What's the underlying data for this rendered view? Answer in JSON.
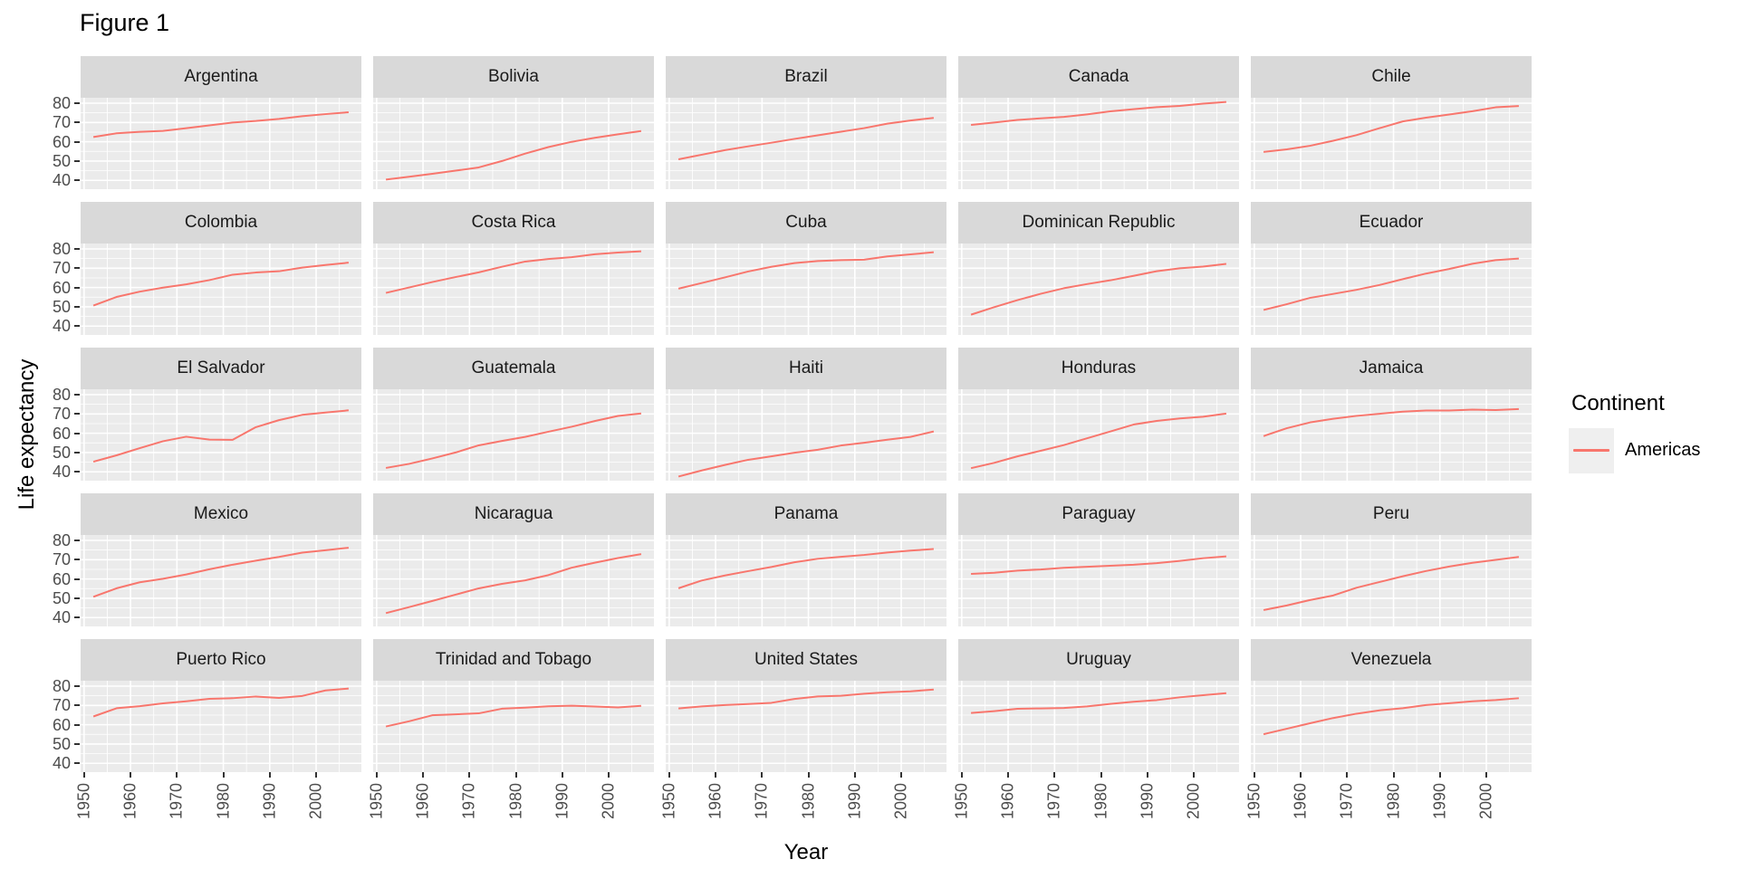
{
  "title": "Figure 1",
  "axes": {
    "x_label": "Year",
    "y_label": "Life expectancy",
    "x_tick_labels": [
      "1950",
      "1960",
      "1970",
      "1980",
      "1990",
      "2000"
    ],
    "y_tick_labels": [
      "40",
      "50",
      "60",
      "70",
      "80"
    ]
  },
  "legend": {
    "title": "Continent",
    "entries": [
      {
        "label": "Americas",
        "color": "#F8766D"
      }
    ]
  },
  "colors": {
    "line": "#F8766D",
    "panel_background": "#EBEBEB",
    "strip_background": "#D9D9D9",
    "gridline": "#FFFFFF",
    "axis_text": "#4D4D4D",
    "strip_text": "#1A1A1A",
    "tick_mark": "#333333",
    "legend_key_background": "#EFEFEF"
  },
  "chart_data": {
    "type": "line",
    "title": "Figure 1",
    "xlabel": "Year",
    "ylabel": "Life expectancy",
    "facet_layout": {
      "rows": 5,
      "cols": 5
    },
    "legend_position": "right",
    "grid": true,
    "x": [
      1952,
      1957,
      1962,
      1967,
      1972,
      1977,
      1982,
      1987,
      1992,
      1997,
      2002,
      2007
    ],
    "xlim": [
      1949.25,
      2009.75
    ],
    "ylim": [
      35.43,
      82.81
    ],
    "x_major_ticks": [
      1950,
      1960,
      1970,
      1980,
      1990,
      2000
    ],
    "x_minor_ticks": [
      1955,
      1965,
      1975,
      1985,
      1995,
      2005
    ],
    "y_major_ticks": [
      40,
      50,
      60,
      70,
      80
    ],
    "y_minor_ticks": [
      45,
      55,
      65,
      75
    ],
    "series": [
      {
        "name": "Argentina",
        "values": [
          62.48,
          64.4,
          65.14,
          65.63,
          67.06,
          68.48,
          69.94,
          70.77,
          71.87,
          73.28,
          74.34,
          75.32
        ]
      },
      {
        "name": "Bolivia",
        "values": [
          40.41,
          41.89,
          43.43,
          45.03,
          46.71,
          50.02,
          53.86,
          57.25,
          59.96,
          62.05,
          63.88,
          65.55
        ]
      },
      {
        "name": "Brazil",
        "values": [
          50.92,
          53.28,
          55.66,
          57.63,
          59.5,
          61.49,
          63.34,
          65.21,
          67.06,
          69.39,
          71.01,
          72.39
        ]
      },
      {
        "name": "Canada",
        "values": [
          68.75,
          69.96,
          71.3,
          72.13,
          72.88,
          74.21,
          75.76,
          76.86,
          77.95,
          78.61,
          79.77,
          80.65
        ]
      },
      {
        "name": "Chile",
        "values": [
          54.74,
          56.07,
          57.92,
          60.52,
          63.44,
          67.05,
          70.56,
          72.49,
          74.13,
          75.82,
          77.86,
          78.55
        ]
      },
      {
        "name": "Colombia",
        "values": [
          50.64,
          55.12,
          57.86,
          59.96,
          61.62,
          63.84,
          66.65,
          67.77,
          68.42,
          70.31,
          71.68,
          72.89
        ]
      },
      {
        "name": "Costa Rica",
        "values": [
          57.21,
          60.03,
          62.84,
          65.42,
          67.85,
          70.75,
          73.45,
          74.75,
          75.71,
          77.26,
          78.12,
          78.78
        ]
      },
      {
        "name": "Cuba",
        "values": [
          59.42,
          62.33,
          65.25,
          68.29,
          70.72,
          72.65,
          73.72,
          74.17,
          74.41,
          76.15,
          77.16,
          78.27
        ]
      },
      {
        "name": "Dominican Republic",
        "values": [
          45.93,
          49.83,
          53.46,
          56.75,
          59.63,
          61.79,
          63.73,
          66.05,
          68.46,
          69.96,
          70.85,
          72.24
        ]
      },
      {
        "name": "Ecuador",
        "values": [
          48.36,
          51.36,
          54.64,
          56.68,
          58.8,
          61.31,
          64.34,
          67.23,
          69.61,
          72.31,
          74.17,
          74.99
        ]
      },
      {
        "name": "El Salvador",
        "values": [
          45.26,
          48.57,
          52.31,
          55.86,
          58.21,
          56.7,
          56.6,
          63.15,
          66.8,
          69.54,
          70.73,
          71.88
        ]
      },
      {
        "name": "Guatemala",
        "values": [
          42.02,
          44.14,
          46.95,
          50.02,
          53.74,
          56.03,
          58.14,
          60.78,
          63.37,
          66.32,
          68.98,
          70.26
        ]
      },
      {
        "name": "Haiti",
        "values": [
          37.58,
          40.7,
          43.59,
          46.24,
          48.04,
          49.92,
          51.46,
          53.64,
          55.09,
          56.67,
          58.14,
          60.92
        ]
      },
      {
        "name": "Honduras",
        "values": [
          41.91,
          44.67,
          48.04,
          50.92,
          53.88,
          57.4,
          60.91,
          64.49,
          66.4,
          67.66,
          68.57,
          70.2
        ]
      },
      {
        "name": "Jamaica",
        "values": [
          58.53,
          62.61,
          65.61,
          67.51,
          69.0,
          70.11,
          71.21,
          71.77,
          71.77,
          72.26,
          72.05,
          72.57
        ]
      },
      {
        "name": "Mexico",
        "values": [
          50.79,
          55.19,
          58.3,
          60.11,
          62.36,
          65.03,
          67.41,
          69.5,
          71.45,
          73.67,
          74.9,
          76.19
        ]
      },
      {
        "name": "Nicaragua",
        "values": [
          42.31,
          45.43,
          48.63,
          51.88,
          55.15,
          57.47,
          59.3,
          62.01,
          65.84,
          68.43,
          70.84,
          72.9
        ]
      },
      {
        "name": "Panama",
        "values": [
          55.19,
          59.2,
          61.82,
          64.07,
          66.22,
          68.68,
          70.47,
          71.52,
          72.46,
          73.74,
          74.71,
          75.54
        ]
      },
      {
        "name": "Paraguay",
        "values": [
          62.65,
          63.2,
          64.36,
          64.95,
          65.82,
          66.35,
          66.87,
          67.38,
          68.23,
          69.4,
          70.76,
          71.75
        ]
      },
      {
        "name": "Peru",
        "values": [
          43.9,
          46.26,
          49.1,
          51.45,
          55.45,
          58.45,
          61.41,
          64.13,
          66.46,
          68.39,
          69.91,
          71.42
        ]
      },
      {
        "name": "Puerto Rico",
        "values": [
          64.28,
          68.54,
          69.62,
          71.1,
          72.16,
          73.44,
          73.75,
          74.63,
          73.91,
          74.92,
          77.78,
          78.75
        ]
      },
      {
        "name": "Trinidad and Tobago",
        "values": [
          59.1,
          61.8,
          64.9,
          65.4,
          65.9,
          68.3,
          68.83,
          69.58,
          69.86,
          69.47,
          68.98,
          69.82
        ]
      },
      {
        "name": "United States",
        "values": [
          68.44,
          69.49,
          70.21,
          70.76,
          71.34,
          73.38,
          74.65,
          75.02,
          76.09,
          76.81,
          77.31,
          78.24
        ]
      },
      {
        "name": "Uruguay",
        "values": [
          66.07,
          67.04,
          68.25,
          68.47,
          68.67,
          69.48,
          70.81,
          71.92,
          72.75,
          74.22,
          75.31,
          76.38
        ]
      },
      {
        "name": "Venezuela",
        "values": [
          55.09,
          57.91,
          60.77,
          63.48,
          65.71,
          67.46,
          68.56,
          70.19,
          71.15,
          72.15,
          72.77,
          73.75
        ]
      }
    ]
  }
}
